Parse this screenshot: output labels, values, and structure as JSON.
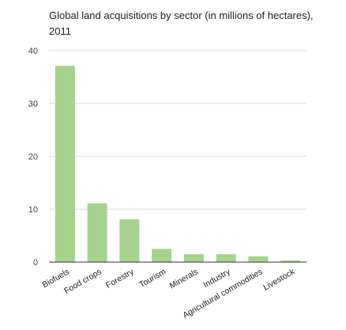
{
  "chart_data": {
    "type": "bar",
    "title": "Global land acquisitions by sector (in millions of hectares), 2011",
    "categories": [
      "Biofuels",
      "Food crops",
      "Forestry",
      "Tourism",
      "Minerals",
      "Industry",
      "Agricultural commodities",
      "Livestock"
    ],
    "values": [
      37.1,
      11.1,
      8.1,
      2.5,
      1.5,
      1.5,
      1.1,
      0.3
    ],
    "xlabel": "",
    "ylabel": "",
    "ylim": [
      0,
      40
    ],
    "yticks": [
      0,
      10,
      20,
      30,
      40
    ],
    "grid": true,
    "legend": "none",
    "bar_color": "#a6d38b",
    "grid_color": "#dddddd",
    "axis_color": "#333333"
  }
}
